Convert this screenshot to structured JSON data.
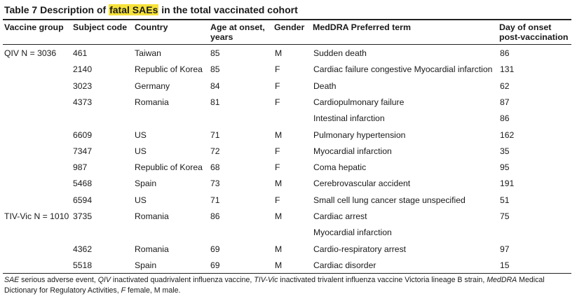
{
  "title": {
    "prefix": "Table 7 Description of ",
    "highlight": "fatal SAEs",
    "suffix": " in the total vaccinated cohort"
  },
  "headers": {
    "group": "Vaccine group",
    "subject": "Subject code",
    "country": "Country",
    "age_l1": "Age at onset,",
    "age_l2": "years",
    "gender": "Gender",
    "term": "MedDRA Preferred term",
    "day_l1": "Day of onset",
    "day_l2": "post-vaccination"
  },
  "rows": [
    {
      "group": "QIV N = 3036",
      "subject": "461",
      "country": "Taiwan",
      "age": "85",
      "gender": "M",
      "term": "Sudden death",
      "day": "86"
    },
    {
      "group": "",
      "subject": "2140",
      "country": "Republic of Korea",
      "age": "85",
      "gender": "F",
      "term": "Cardiac failure congestive Myocardial infarction",
      "day": "131"
    },
    {
      "group": "",
      "subject": "3023",
      "country": "Germany",
      "age": "84",
      "gender": "F",
      "term": "Death",
      "day": "62"
    },
    {
      "group": "",
      "subject": "4373",
      "country": "Romania",
      "age": "81",
      "gender": "F",
      "term": "Cardiopulmonary failure",
      "day": "87"
    },
    {
      "group": "",
      "subject": "",
      "country": "",
      "age": "",
      "gender": "",
      "term": "Intestinal infarction",
      "day": "86"
    },
    {
      "group": "",
      "subject": "6609",
      "country": "US",
      "age": "71",
      "gender": "M",
      "term": "Pulmonary hypertension",
      "day": "162"
    },
    {
      "group": "",
      "subject": "7347",
      "country": "US",
      "age": "72",
      "gender": "F",
      "term": "Myocardial infarction",
      "day": "35"
    },
    {
      "group": "",
      "subject": "987",
      "country": "Republic of Korea",
      "age": "68",
      "gender": "F",
      "term": "Coma hepatic",
      "day": "95"
    },
    {
      "group": "",
      "subject": "5468",
      "country": "Spain",
      "age": "73",
      "gender": "M",
      "term": "Cerebrovascular accident",
      "day": "191"
    },
    {
      "group": "",
      "subject": "6594",
      "country": "US",
      "age": "71",
      "gender": "F",
      "term": "Small cell lung cancer stage unspecified",
      "day": "51"
    },
    {
      "group": "TIV-Vic N = 1010",
      "subject": "3735",
      "country": "Romania",
      "age": "86",
      "gender": "M",
      "term": "Cardiac arrest",
      "day": "75"
    },
    {
      "group": "",
      "subject": "",
      "country": "",
      "age": "",
      "gender": "",
      "term": "Myocardial infarction",
      "day": ""
    },
    {
      "group": "",
      "subject": "4362",
      "country": "Romania",
      "age": "69",
      "gender": "M",
      "term": "Cardio-respiratory arrest",
      "day": "97"
    },
    {
      "group": "",
      "subject": "5518",
      "country": "Spain",
      "age": "69",
      "gender": "M",
      "term": "Cardiac disorder",
      "day": "15"
    }
  ],
  "footnote": {
    "sae_abbr": "SAE",
    "sae_def": " serious adverse event, ",
    "qiv_abbr": "QIV",
    "qiv_def": " inactivated quadrivalent influenza vaccine, ",
    "tiv_abbr": "TIV-Vic",
    "tiv_def": " inactivated trivalent influenza vaccine Victoria lineage B strain, ",
    "meddra_abbr": "MedDRA",
    "meddra_def": " Medical Dictionary for Regulatory Activities, ",
    "f_abbr": "F",
    "f_def": " female, M male."
  }
}
